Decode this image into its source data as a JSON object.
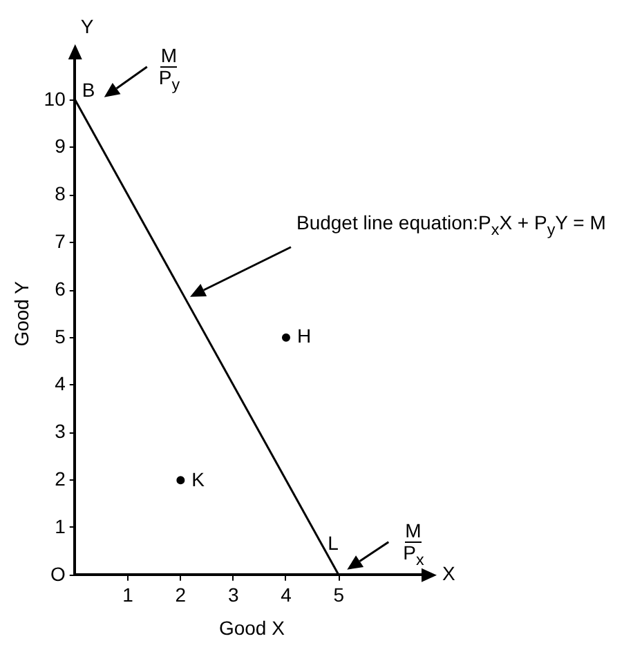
{
  "chart_data": {
    "type": "line",
    "xlabel": "Good X",
    "ylabel": "Good Y",
    "xlim": [
      0,
      6.7
    ],
    "ylim": [
      0,
      11
    ],
    "xticks": [
      1,
      2,
      3,
      4,
      5
    ],
    "yticks": [
      {
        "value": 0,
        "label": "O"
      },
      1,
      2,
      3,
      4,
      5,
      6,
      7,
      8,
      9,
      10
    ],
    "series": [
      {
        "x": [
          0,
          5
        ],
        "values": [
          10,
          0
        ],
        "color": "#000000",
        "marker": "none",
        "line_style": "solid"
      },
      {
        "type": "scatter",
        "x": [
          4,
          2
        ],
        "values": [
          5,
          2
        ],
        "color": "#000000",
        "marker": "circle",
        "value_labels": [
          "H",
          "K"
        ]
      }
    ],
    "annotations": [
      "X",
      "Y",
      "M",
      "P$_{y}$",
      "Budget line equation:P$_{x}$X + P$_{y}$Y = M",
      "M",
      "P$_{x}$",
      {
        "text": "B",
        "x": 0,
        "y": 10
      },
      {
        "text": "L",
        "x": 5,
        "y": 0
      }
    ],
    "grid": false,
    "legend": false
  }
}
